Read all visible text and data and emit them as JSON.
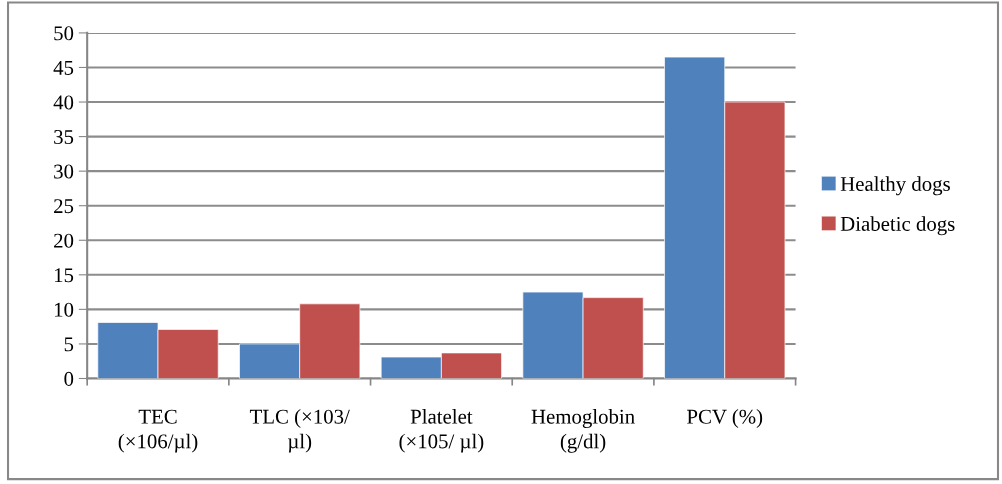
{
  "chart_data": {
    "type": "bar",
    "categories": [
      "TEC\n(×106/µl)",
      "TLC (×103/\nµl)",
      "Platelet\n(×105/ µl)",
      "Hemoglobin\n(g/dl)",
      "PCV (%)"
    ],
    "series": [
      {
        "name": "Healthy dogs",
        "color": "#4f81bd",
        "values": [
          8.1,
          5.0,
          3.1,
          12.5,
          46.5
        ]
      },
      {
        "name": "Diabetic dogs",
        "color": "#c0504d",
        "values": [
          7.1,
          10.8,
          3.7,
          11.7,
          40.0
        ]
      }
    ],
    "ylim": [
      0,
      50
    ],
    "yticks": [
      0,
      5,
      10,
      15,
      20,
      25,
      30,
      35,
      40,
      45,
      50
    ],
    "grid": "y",
    "legend": "right"
  }
}
